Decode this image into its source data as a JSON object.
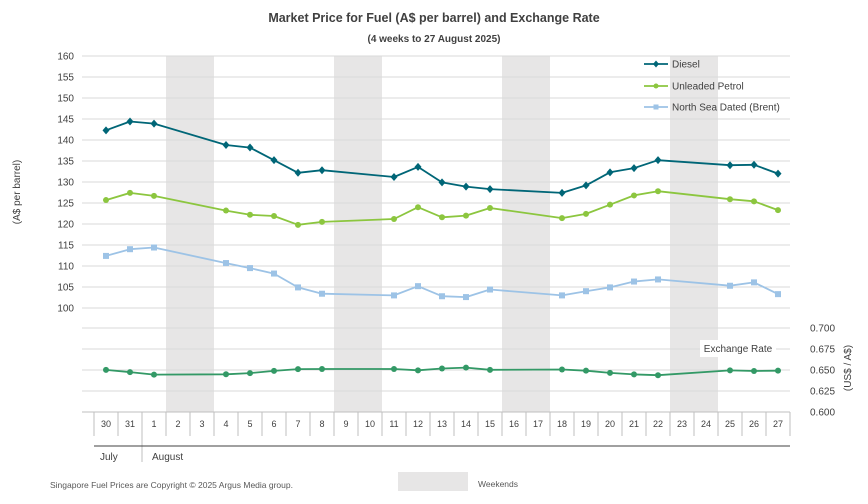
{
  "chart_data": {
    "type": "line",
    "title": "Market Price for Fuel (A$ per barrel) and Exchange Rate",
    "subtitle": "(4 weeks to 27 August 2025)",
    "ylabel": "(A$ per barrel)",
    "y2label": "(US$ / A$)",
    "ylim": [
      100,
      160
    ],
    "yticks": [
      "160",
      "155",
      "150",
      "145",
      "140",
      "135",
      "130",
      "125",
      "120",
      "115",
      "110",
      "105",
      "100"
    ],
    "y2lim": [
      0.6,
      0.7
    ],
    "y2ticks": [
      "0.700",
      "0.675",
      "0.650",
      "0.625",
      "0.600"
    ],
    "x_labels": [
      "30",
      "31",
      "1",
      "2",
      "3",
      "4",
      "5",
      "6",
      "7",
      "8",
      "9",
      "10",
      "11",
      "12",
      "13",
      "14",
      "15",
      "16",
      "17",
      "18",
      "19",
      "20",
      "21",
      "22",
      "23",
      "24",
      "25",
      "26",
      "27"
    ],
    "month_labels": [
      "July",
      "August"
    ],
    "weekends": [
      [
        "2",
        "3"
      ],
      [
        "9",
        "10"
      ],
      [
        "16",
        "17"
      ],
      [
        "23",
        "24"
      ]
    ],
    "weekend_legend": "Weekends",
    "exchange_label": "Exchange Rate",
    "footer": "Singapore Fuel Prices are Copyright © 2025 Argus Media group.",
    "series": [
      {
        "name": "Diesel",
        "color": "#006677",
        "marker": "diamond",
        "points": [
          [
            "30",
            142.3
          ],
          [
            "31",
            144.4
          ],
          [
            "1",
            143.9
          ],
          [
            "4",
            138.8
          ],
          [
            "5",
            138.2
          ],
          [
            "6",
            135.2
          ],
          [
            "7",
            132.2
          ],
          [
            "8",
            132.8
          ],
          [
            "11",
            131.2
          ],
          [
            "12",
            133.6
          ],
          [
            "13",
            129.9
          ],
          [
            "14",
            128.9
          ],
          [
            "15",
            128.3
          ],
          [
            "18",
            127.4
          ],
          [
            "19",
            129.2
          ],
          [
            "20",
            132.3
          ],
          [
            "21",
            133.3
          ],
          [
            "22",
            135.2
          ],
          [
            "25",
            134.0
          ],
          [
            "26",
            134.1
          ],
          [
            "27",
            132.0
          ]
        ]
      },
      {
        "name": "Unleaded Petrol",
        "color": "#8CC63F",
        "marker": "circle",
        "points": [
          [
            "30",
            125.7
          ],
          [
            "31",
            127.4
          ],
          [
            "1",
            126.7
          ],
          [
            "4",
            123.2
          ],
          [
            "5",
            122.2
          ],
          [
            "6",
            121.9
          ],
          [
            "7",
            119.8
          ],
          [
            "8",
            120.5
          ],
          [
            "11",
            121.2
          ],
          [
            "12",
            124.0
          ],
          [
            "13",
            121.6
          ],
          [
            "14",
            122.0
          ],
          [
            "15",
            123.8
          ],
          [
            "18",
            121.4
          ],
          [
            "19",
            122.4
          ],
          [
            "20",
            124.6
          ],
          [
            "21",
            126.8
          ],
          [
            "22",
            127.8
          ],
          [
            "25",
            125.9
          ],
          [
            "26",
            125.4
          ],
          [
            "27",
            123.3
          ]
        ]
      },
      {
        "name": "North Sea Dated (Brent)",
        "color": "#9DC3E6",
        "marker": "square",
        "points": [
          [
            "30",
            112.4
          ],
          [
            "31",
            114.0
          ],
          [
            "1",
            114.4
          ],
          [
            "4",
            110.7
          ],
          [
            "5",
            109.5
          ],
          [
            "6",
            108.2
          ],
          [
            "7",
            104.9
          ],
          [
            "8",
            103.4
          ],
          [
            "11",
            103.0
          ],
          [
            "12",
            105.2
          ],
          [
            "13",
            102.8
          ],
          [
            "14",
            102.6
          ],
          [
            "15",
            104.4
          ],
          [
            "18",
            103.0
          ],
          [
            "19",
            104.0
          ],
          [
            "20",
            104.9
          ],
          [
            "21",
            106.3
          ],
          [
            "22",
            106.8
          ],
          [
            "25",
            105.3
          ],
          [
            "26",
            106.1
          ],
          [
            "27",
            103.3
          ]
        ]
      },
      {
        "name": "Exchange Rate",
        "color": "#339966",
        "marker": "circle",
        "axis": "secondary",
        "points": [
          [
            "30",
            0.6501
          ],
          [
            "31",
            0.6475
          ],
          [
            "1",
            0.6445
          ],
          [
            "4",
            0.6449
          ],
          [
            "5",
            0.6463
          ],
          [
            "6",
            0.6489
          ],
          [
            "7",
            0.6511
          ],
          [
            "8",
            0.6512
          ],
          [
            "11",
            0.6512
          ],
          [
            "12",
            0.6496
          ],
          [
            "13",
            0.6518
          ],
          [
            "14",
            0.6529
          ],
          [
            "15",
            0.6502
          ],
          [
            "18",
            0.6506
          ],
          [
            "19",
            0.6492
          ],
          [
            "20",
            0.6466
          ],
          [
            "21",
            0.6448
          ],
          [
            "22",
            0.6438
          ],
          [
            "25",
            0.6495
          ],
          [
            "26",
            0.6488
          ],
          [
            "27",
            0.6492
          ]
        ]
      }
    ]
  }
}
